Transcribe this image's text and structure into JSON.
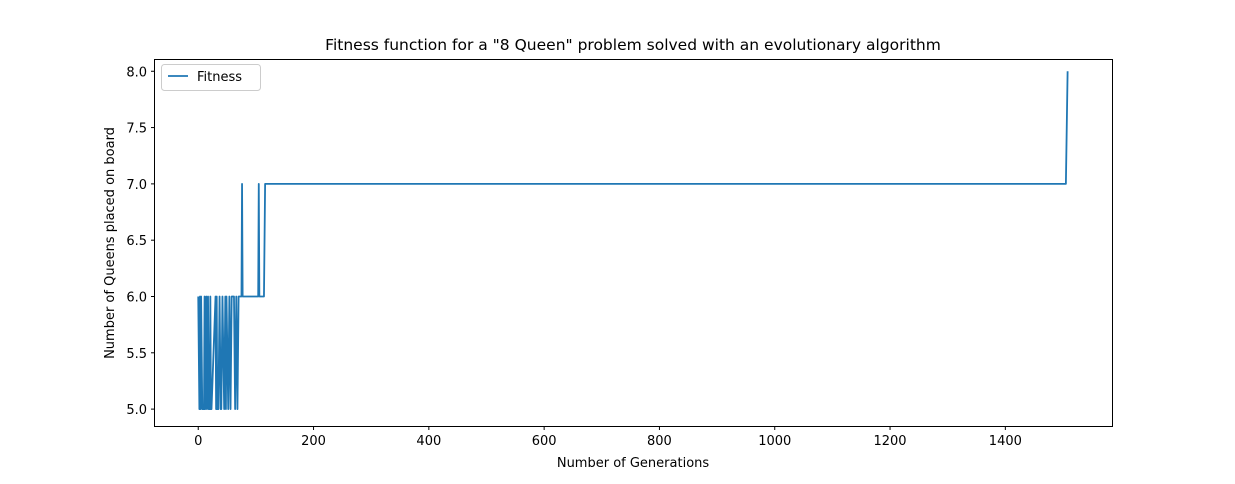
{
  "chart_data": {
    "type": "line",
    "title": "Fitness function for a \"8 Queen\" problem solved with an evolutionary algorithm",
    "xlabel": "Number of Generations",
    "ylabel": "Number of Queens placed on board",
    "xlim": [
      -75,
      1585
    ],
    "ylim": [
      4.85,
      8.1
    ],
    "xticks": [
      0,
      200,
      400,
      600,
      800,
      1000,
      1200,
      1400
    ],
    "yticks": [
      5.0,
      5.5,
      6.0,
      6.5,
      7.0,
      7.5,
      8.0
    ],
    "grid": false,
    "legend": {
      "position": "top-left",
      "entries": [
        "Fitness"
      ]
    },
    "colors": {
      "series": "#1f77b4",
      "axes": "#000000",
      "legend_border": "#cccccc"
    },
    "series": [
      {
        "name": "Fitness",
        "x": [
          0,
          2,
          3,
          4,
          5,
          7,
          10,
          11,
          12,
          14,
          15,
          17,
          18,
          20,
          21,
          22,
          23,
          30,
          31,
          32,
          33,
          35,
          37,
          39,
          40,
          42,
          45,
          47,
          48,
          49,
          52,
          54,
          56,
          58,
          62,
          64,
          66,
          68,
          70,
          75,
          76,
          77,
          78,
          79,
          104,
          105,
          106,
          107,
          114,
          116,
          117,
          1505,
          1508
        ],
        "y": [
          6,
          5,
          6,
          5,
          6,
          5,
          5,
          6,
          5,
          6,
          5,
          6,
          5,
          5,
          6,
          5,
          5,
          6,
          5,
          6,
          5,
          5,
          6,
          5,
          5,
          6,
          5,
          6,
          5,
          6,
          5,
          6,
          5,
          6,
          6,
          5,
          6,
          5,
          6,
          6,
          7,
          6,
          6,
          6,
          6,
          7,
          6,
          6,
          6,
          7,
          7,
          7,
          8
        ]
      }
    ]
  }
}
